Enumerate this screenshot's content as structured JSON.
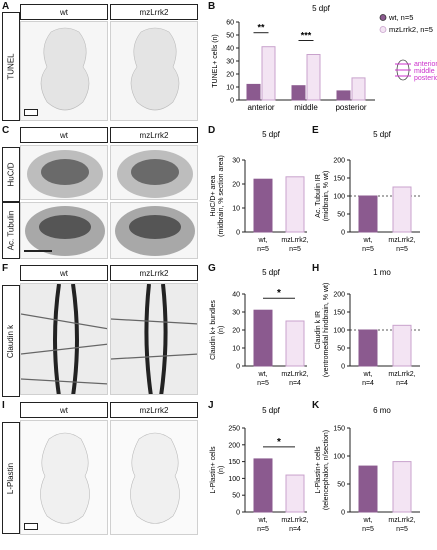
{
  "figure": {
    "panels": {
      "A": {
        "letter": "A",
        "row_label": "TUNEL",
        "col_wt": "wt",
        "col_mut": "mzLrrk2"
      },
      "B": {
        "letter": "B",
        "title": "5 dpf"
      },
      "C": {
        "letter": "C",
        "row_label_1": "HuC/D",
        "row_label_2": "Ac. Tubulin",
        "col_wt": "wt",
        "col_mut": "mzLrrk2"
      },
      "D": {
        "letter": "D",
        "title": "5 dpf"
      },
      "E": {
        "letter": "E",
        "title": "5 dpf"
      },
      "F": {
        "letter": "F",
        "row_label": "Claudin k",
        "col_wt": "wt",
        "col_mut": "mzLrrk2"
      },
      "G": {
        "letter": "G",
        "title": "5 dpf"
      },
      "H": {
        "letter": "H",
        "title": "1 mo"
      },
      "I": {
        "letter": "I",
        "row_label": "L-Plastin",
        "col_wt": "wt",
        "col_mut": "mzLrrk2"
      },
      "J": {
        "letter": "J",
        "title": "5 dpf"
      },
      "K": {
        "letter": "K",
        "title": "6 mo"
      }
    },
    "colors": {
      "wt": "#8b5a8f",
      "mut": "#f3e4f3",
      "mut_stroke": "#c8a2cc",
      "region_key": "#cc33cc",
      "axis": "#222222"
    }
  },
  "chart_data": [
    {
      "panel": "B",
      "type": "bar",
      "title": "5 dpf",
      "ylabel": "TUNEL+ cells (n)",
      "ylim": [
        0,
        60
      ],
      "yticks": [
        0,
        10,
        20,
        30,
        40,
        50,
        60
      ],
      "categories": [
        "anterior",
        "middle",
        "posterior"
      ],
      "series": [
        {
          "name": "wt, n=5",
          "values": [
            12,
            11,
            7
          ]
        },
        {
          "name": "mzLrrk2, n=5",
          "values": [
            41,
            35,
            17
          ]
        }
      ],
      "significance": [
        {
          "category": "anterior",
          "label": "**"
        },
        {
          "category": "middle",
          "label": "***"
        }
      ],
      "annotations": [
        "anterior",
        "middle",
        "posterior"
      ]
    },
    {
      "panel": "D",
      "type": "bar",
      "title": "5 dpf",
      "ylabel": "HuC/D+ area (midbrain, % section area)",
      "ylim": [
        0,
        30
      ],
      "yticks": [
        0,
        10,
        20,
        30
      ],
      "categories": [
        "wt, n=5",
        "mzLrrk2, n=5"
      ],
      "values": [
        22,
        23
      ]
    },
    {
      "panel": "E",
      "type": "bar",
      "title": "5 dpf",
      "ylabel": "Ac. Tubulin IR (midbrain, % wt)",
      "ylim": [
        0,
        200
      ],
      "yticks": [
        0,
        50,
        100,
        150,
        200
      ],
      "categories": [
        "wt, n=5",
        "mzLrrk2, n=5"
      ],
      "values": [
        100,
        125
      ]
    },
    {
      "panel": "G",
      "type": "bar",
      "title": "5 dpf",
      "ylabel": "Claudin k+ bundles (n)",
      "ylim": [
        0,
        40
      ],
      "yticks": [
        0,
        10,
        20,
        30,
        40
      ],
      "categories": [
        "wt, n=5",
        "mzLrrk2, n=4"
      ],
      "values": [
        31,
        25
      ],
      "significance": [
        {
          "label": "*"
        }
      ]
    },
    {
      "panel": "H",
      "type": "bar",
      "title": "1 mo",
      "ylabel": "Claudin k IR (ventromedial hindbrain, % wt)",
      "ylim": [
        0,
        200
      ],
      "yticks": [
        0,
        50,
        100,
        150,
        200
      ],
      "categories": [
        "wt, n=4",
        "mzLrrk2, n=4"
      ],
      "values": [
        100,
        113
      ]
    },
    {
      "panel": "J",
      "type": "bar",
      "title": "5 dpf",
      "ylabel": "L-Plastin+ cells (n)",
      "ylim": [
        0,
        250
      ],
      "yticks": [
        0,
        50,
        100,
        150,
        200,
        250
      ],
      "categories": [
        "wt, n=5",
        "mzLrrk2, n=4"
      ],
      "values": [
        158,
        110
      ],
      "significance": [
        {
          "label": "*"
        }
      ]
    },
    {
      "panel": "K",
      "type": "bar",
      "title": "6 mo",
      "ylabel": "L-Plastin+ cells (telencephalon, n/section)",
      "ylim": [
        0,
        150
      ],
      "yticks": [
        0,
        50,
        100,
        150
      ],
      "categories": [
        "wt, n=5",
        "mzLrrk2, n=5"
      ],
      "values": [
        82,
        90
      ]
    }
  ]
}
